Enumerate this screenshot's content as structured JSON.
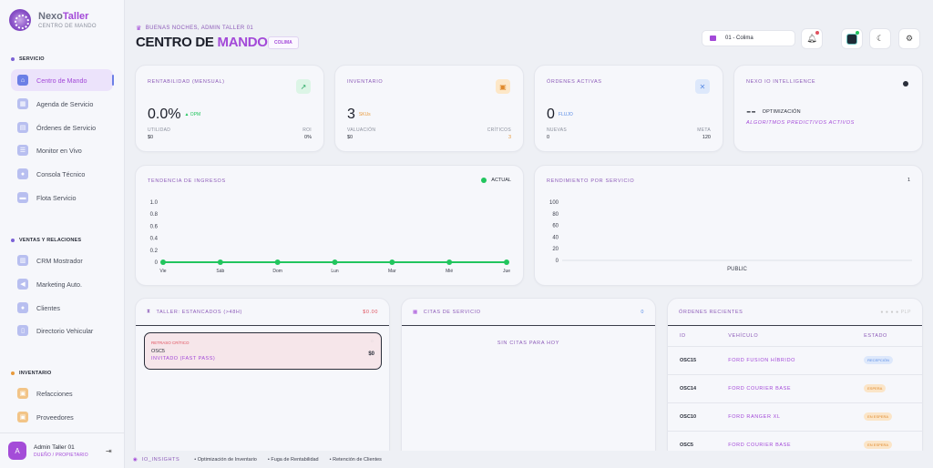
{
  "brand": {
    "name_a": "Nexo",
    "name_b": "Taller",
    "subtitle": "CENTRO DE MANDO"
  },
  "sidebar": {
    "sections": [
      {
        "label": "SERVICIO"
      },
      {
        "label": "VENTAS Y RELACIONES"
      },
      {
        "label": "INVENTARIO"
      }
    ],
    "items": [
      {
        "label": "Centro de Mando",
        "icon": "home-icon"
      },
      {
        "label": "Agenda de Servicio",
        "icon": "calendar-icon"
      },
      {
        "label": "Órdenes de Servicio",
        "icon": "clipboard-icon"
      },
      {
        "label": "Monitor en Vivo",
        "icon": "monitor-icon"
      },
      {
        "label": "Consola Técnico",
        "icon": "technician-icon"
      },
      {
        "label": "Flota Servicio",
        "icon": "truck-icon"
      },
      {
        "label": "CRM Mostrador",
        "icon": "crm-icon"
      },
      {
        "label": "Marketing Auto.",
        "icon": "megaphone-icon"
      },
      {
        "label": "Clientes",
        "icon": "users-icon"
      },
      {
        "label": "Directorio Vehicular",
        "icon": "car-icon"
      },
      {
        "label": "Refacciones",
        "icon": "box-icon"
      },
      {
        "label": "Proveedores",
        "icon": "supplier-icon"
      }
    ]
  },
  "user": {
    "initial": "A",
    "name": "Admin Taller 01",
    "role": "DUEÑO / PROPIETARIO"
  },
  "header": {
    "greeting": "BUENAS NOCHES, ADMIN TALLER 01",
    "title_a": "CENTRO DE ",
    "title_b": "MANDO",
    "city_badge": "COLIMA",
    "branch": "01 - Colima"
  },
  "kpis": {
    "rentabilidad": {
      "label": "RENTABILIDAD (MENSUAL)",
      "value": "0.0%",
      "tag": "▲ OPM",
      "left_label": "UTILIDAD",
      "left_value": "$0",
      "right_label": "ROI",
      "right_value": "0%"
    },
    "inventario": {
      "label": "INVENTARIO",
      "value": "3",
      "tag": "SKUs",
      "left_label": "VALUACIÓN",
      "left_value": "$0",
      "right_label": "CRÍTICOS",
      "right_value": "3"
    },
    "ordenes": {
      "label": "ÓRDENES ACTIVAS",
      "value": "0",
      "tag": "FLUJO",
      "left_label": "NUEVAS",
      "left_value": "0",
      "right_label": "META",
      "right_value": "120"
    },
    "ai": {
      "label": "NEXO IO INTELLIGENCE",
      "value": "--",
      "value_label": "OPTIMIZACIÓN",
      "sub": "ALGORITMOS PREDICTIVOS ACTIVOS"
    }
  },
  "chart_data": [
    {
      "type": "line",
      "title": "TENDENCIA DE INGRESOS",
      "categories": [
        "Vie",
        "Sáb",
        "Dom",
        "Lun",
        "Mar",
        "Mié",
        "Jue"
      ],
      "series": [
        {
          "name": "ACTUAL",
          "values": [
            0,
            0,
            0,
            0,
            0,
            0,
            0
          ],
          "color": "#22c55e"
        }
      ],
      "yticks": [
        "0",
        "0.2",
        "0.4",
        "0.6",
        "0.8",
        "1.0"
      ],
      "ylim": [
        0,
        1
      ],
      "legend": "top-right"
    },
    {
      "type": "bar",
      "title": "RENDIMIENTO POR SERVICIO",
      "counter": "1",
      "categories": [
        "PUBLIC"
      ],
      "values": [
        0
      ],
      "yticks": [
        "0",
        "20",
        "40",
        "60",
        "80",
        "100"
      ],
      "ylim": [
        0,
        100
      ]
    }
  ],
  "panels": {
    "stalled": {
      "title": "TALLER: ESTANCADOS (>48H)",
      "total": "$0.00",
      "card": {
        "tag": "RETRASO CRÍTICO",
        "id": "OSC5",
        "client": "INVITADO (FAST PASS)",
        "amount": "$0"
      }
    },
    "appointments": {
      "title": "CITAS DE SERVICIO",
      "count": "0",
      "empty": "SIN CITAS PARA HOY"
    },
    "orders": {
      "title": "ÓRDENES RECIENTES",
      "legend": "● ● ● ● PLP",
      "columns": [
        "ID",
        "VEHÍCULO",
        "ESTADO"
      ],
      "rows": [
        {
          "id": "OSC15",
          "vehicle": "FORD FUSION HÍBRIDO",
          "status": "RECEPCIÓN",
          "color": "#5b8de6",
          "bg": "#dde8fb"
        },
        {
          "id": "OSC14",
          "vehicle": "FORD COURIER BASE",
          "status": "ESPERA",
          "color": "#e08a2c",
          "bg": "#fbe5c8"
        },
        {
          "id": "OSC10",
          "vehicle": "FORD RANGER XL",
          "status": "EN ESPERA",
          "color": "#e08a2c",
          "bg": "#fbe5c8"
        },
        {
          "id": "OSC5",
          "vehicle": "FORD COURIER BASE",
          "status": "EN ESPERA",
          "color": "#e08a2c",
          "bg": "#fbe5c8"
        }
      ]
    }
  },
  "insights": {
    "title": "IO_INSIGHTS",
    "items": [
      "Optimización de Inventario",
      "Fuga de Rentabilidad",
      "Retención de Clientes"
    ]
  }
}
